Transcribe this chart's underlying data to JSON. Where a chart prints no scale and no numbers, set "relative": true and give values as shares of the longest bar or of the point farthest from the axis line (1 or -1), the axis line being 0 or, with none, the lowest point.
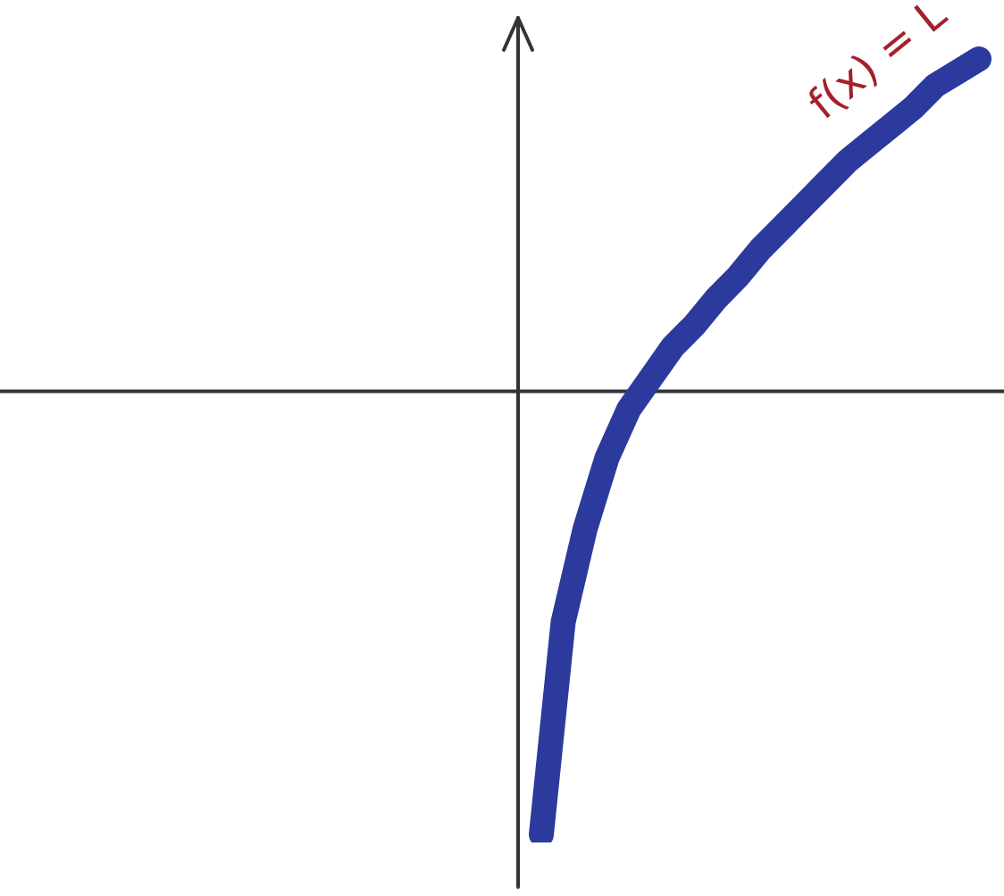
{
  "chart_data": {
    "type": "line",
    "relative": true,
    "categories": [
      null,
      null,
      null,
      null,
      null,
      null,
      null,
      null,
      null,
      null,
      null,
      null,
      null,
      null,
      null,
      null,
      null,
      null,
      null,
      null,
      null
    ],
    "series": [
      {
        "color": "#2b3a9c",
        "values": [
          -1,
          -0.52,
          -0.31,
          -0.15,
          -0.04,
          0.03,
          0.1,
          0.15,
          0.21,
          0.26,
          0.32,
          0.37,
          0.42,
          0.47,
          0.52,
          0.56,
          0.6,
          0.64,
          0.69,
          0.72,
          0.75
        ]
      }
    ],
    "annotations": [
      "f(x) = L"
    ],
    "marker": "none",
    "line_style": "solid",
    "grid": false,
    "legend": false
  }
}
